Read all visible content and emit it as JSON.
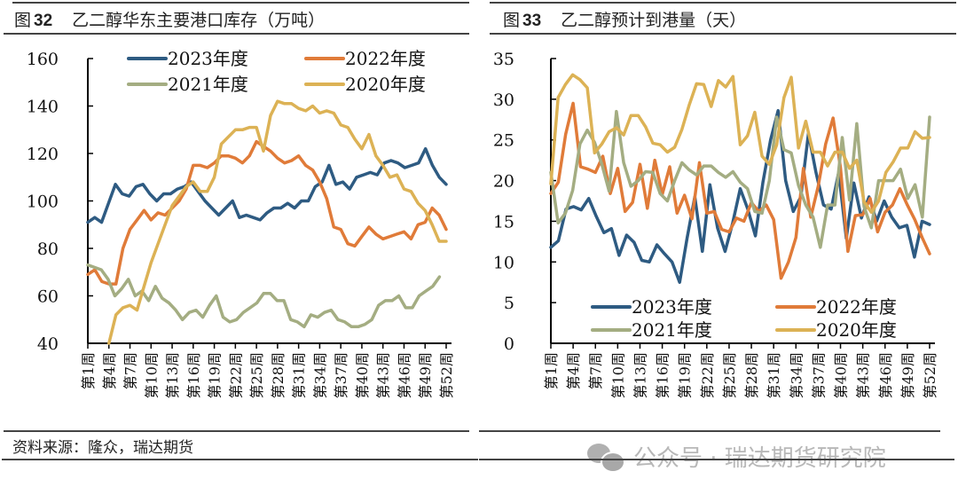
{
  "figures": [
    {
      "label_prefix": "图",
      "label_num": "32",
      "title": "乙二醇华东主要港口库存（万吨）"
    },
    {
      "label_prefix": "图",
      "label_num": "33",
      "title": "乙二醇预计到港量（天）"
    }
  ],
  "source": "资料来源：隆众，瑞达期货",
  "watermark": "公众号 · 瑞达期货研究院",
  "colors": {
    "2023": "#2e5b82",
    "2022": "#e07b39",
    "2021": "#a4ad82",
    "2020": "#dcb255"
  },
  "chart_data": [
    {
      "type": "line",
      "title": "乙二醇华东主要港口库存（万吨）",
      "xlabel": "",
      "ylabel": "",
      "ylim": [
        40,
        160
      ],
      "yticks": [
        "40",
        "60",
        "80",
        "100",
        "120",
        "140",
        "160"
      ],
      "xticks": [
        "第1周",
        "第4周",
        "第7周",
        "第10周",
        "第13周",
        "第16周",
        "第19周",
        "第22周",
        "第25周",
        "第28周",
        "第31周",
        "第34周",
        "第37周",
        "第40周",
        "第43周",
        "第46周",
        "第49周",
        "第52周"
      ],
      "legend_position": "top",
      "grid": false,
      "series": [
        {
          "name": "2023年度",
          "color_key": "2023",
          "values": [
            91,
            93,
            91,
            99,
            107,
            103,
            102,
            106,
            107,
            103,
            100,
            103,
            103,
            105,
            106,
            108,
            104,
            100,
            97,
            94,
            97,
            100,
            93,
            94,
            93,
            92,
            95,
            97,
            97,
            99,
            97,
            100,
            100,
            106,
            108,
            115,
            107,
            108,
            105,
            110,
            111,
            112,
            111,
            116,
            117,
            116,
            114,
            115,
            116,
            122,
            115,
            110,
            107
          ]
        },
        {
          "name": "2022年度",
          "color_key": "2022",
          "values": [
            69,
            71,
            66,
            65,
            65,
            80,
            88,
            92,
            96,
            92,
            95,
            94,
            97,
            100,
            105,
            115,
            115,
            114,
            116,
            119,
            119,
            118,
            116,
            119,
            125,
            123,
            121,
            118,
            116,
            117,
            119,
            115,
            113,
            108,
            101,
            89,
            88,
            82,
            81,
            85,
            89,
            86,
            84,
            85,
            86,
            87,
            84,
            90,
            91,
            97,
            94,
            88
          ]
        },
        {
          "name": "2021年度",
          "color_key": "2021",
          "values": [
            73,
            72,
            71,
            67,
            60,
            63,
            67,
            60,
            62,
            58,
            64,
            59,
            57,
            54,
            50,
            53,
            54,
            51,
            56,
            60,
            51,
            49,
            50,
            53,
            55,
            57,
            61,
            61,
            58,
            58,
            50,
            49,
            47,
            52,
            51,
            53,
            54,
            50,
            49,
            47,
            47,
            48,
            50,
            56,
            58,
            58,
            60,
            55,
            55,
            60,
            62,
            64,
            68,
            66
          ]
        },
        {
          "name": "2020年度",
          "color_key": "2020",
          "values": [
            40,
            null,
            null,
            40,
            52,
            55,
            56,
            54,
            64,
            74,
            82,
            90,
            98,
            102,
            106,
            108,
            104,
            104,
            110,
            124,
            127,
            130,
            130,
            131,
            131,
            121,
            136,
            142,
            141,
            141,
            139,
            138,
            140,
            137,
            138,
            137,
            132,
            131,
            126,
            122,
            128,
            119,
            115,
            110,
            111,
            105,
            104,
            99,
            96,
            90,
            83,
            83
          ]
        }
      ]
    },
    {
      "type": "line",
      "title": "乙二醇预计到港量（天）",
      "xlabel": "",
      "ylabel": "",
      "ylim": [
        0,
        35
      ],
      "yticks": [
        "0",
        "5",
        "10",
        "15",
        "20",
        "25",
        "30",
        "35"
      ],
      "xticks": [
        "第1周",
        "第4周",
        "第7周",
        "第10周",
        "第13周",
        "第16周",
        "第19周",
        "第22周",
        "第25周",
        "第28周",
        "第31周",
        "第34周",
        "第37周",
        "第40周",
        "第43周",
        "第46周",
        "第49周",
        "第52周"
      ],
      "legend_position": "bottom",
      "grid": false,
      "series": [
        {
          "name": "2023年度",
          "color_key": "2023",
          "values": [
            11.8,
            12.6,
            16.5,
            16.8,
            16.4,
            17.8,
            15.6,
            13.6,
            14.1,
            10.8,
            13.3,
            12.4,
            10.2,
            10.0,
            12.1,
            11.0,
            10.0,
            7.5,
            13.0,
            18.0,
            11.3,
            19.5,
            14.2,
            11.3,
            14.8,
            19.0,
            16.5,
            13.2,
            19.8,
            25.0,
            28.6,
            20.0,
            16.2,
            18.0,
            25.8,
            21.0,
            17.0,
            16.5,
            21.0,
            12.9,
            19.7,
            15.4,
            18.0,
            15.0,
            17.5,
            15.5,
            14.2,
            14.5,
            10.6,
            15.0,
            14.6
          ]
        },
        {
          "name": "2022年度",
          "color_key": "2022",
          "values": [
            18.4,
            19.8,
            25.7,
            29.5,
            21.7,
            21.4,
            21.0,
            23.0,
            18.4,
            21.5,
            16.2,
            17.3,
            22.0,
            16.6,
            22.5,
            18.3,
            21.7,
            16.0,
            18.2,
            15.3,
            22.2,
            16.0,
            16.2,
            14.0,
            13.7,
            15.4,
            15.0,
            17.3,
            16.2,
            17.0,
            15.2,
            8.0,
            10.0,
            13.0,
            21.5,
            15.5,
            19.3,
            24.5,
            27.7,
            21.6,
            11.3,
            15.7,
            15.8,
            17.8,
            13.7,
            16.1,
            17.0,
            19.0,
            17.0,
            15.2,
            13.0,
            11.0
          ]
        },
        {
          "name": "2021年度",
          "color_key": "2021",
          "values": [
            21.0,
            14.8,
            16.0,
            18.8,
            24.5,
            26.2,
            24.7,
            22.0,
            18.7,
            28.5,
            22.2,
            19.3,
            20.0,
            21.1,
            21.0,
            18.4,
            17.5,
            20.0,
            22.2,
            21.3,
            20.7,
            21.8,
            21.8,
            21.0,
            20.4,
            21.1,
            19.8,
            19.0,
            16.2,
            16.0,
            20.0,
            27.8,
            23.8,
            23.4,
            19.4,
            17.0,
            15.5,
            11.8,
            17.0,
            17.0,
            25.3,
            17.6,
            27.0,
            16.8,
            14.2,
            20.0,
            20.0,
            20.0,
            21.4,
            17.8,
            19.5,
            15.5,
            27.8
          ]
        },
        {
          "name": "2020年度",
          "color_key": "2020",
          "values": [
            19.6,
            30.2,
            31.8,
            33.0,
            32.4,
            31.4,
            23.4,
            24.5,
            26.0,
            26.5,
            25.6,
            28.0,
            28.0,
            26.6,
            24.6,
            24.4,
            23.5,
            24.1,
            26.3,
            29.3,
            31.9,
            31.8,
            29.1,
            32.3,
            31.5,
            32.8,
            24.4,
            25.5,
            28.4,
            23.0,
            22.0,
            24.4,
            30.2,
            32.7,
            24.0,
            27.3,
            23.5,
            23.5,
            21.8,
            23.5,
            23.5,
            21.5,
            22.5,
            17.4,
            16.1,
            17.5,
            21.0,
            22.3,
            24.0,
            24.0,
            26.0,
            25.2,
            25.3
          ]
        }
      ]
    }
  ]
}
